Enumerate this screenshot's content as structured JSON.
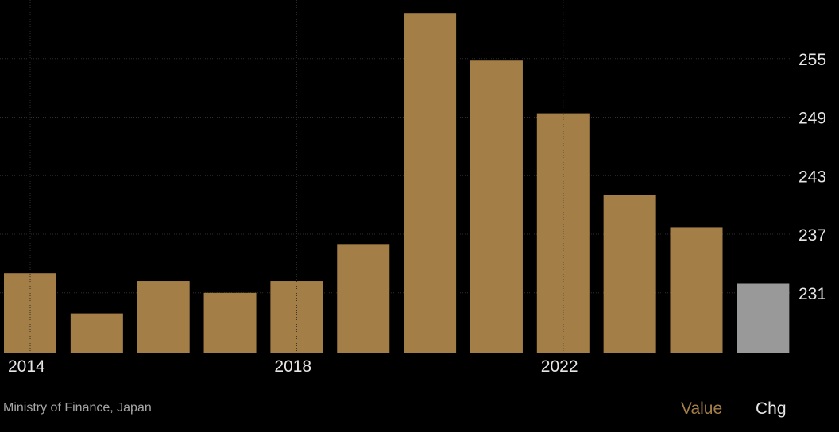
{
  "chart_data": {
    "type": "bar",
    "categories": [
      "2014",
      "2015",
      "2016",
      "2017",
      "2018",
      "2019",
      "2020",
      "2021",
      "2022",
      "2023",
      "2024",
      "2025"
    ],
    "values": [
      233.0,
      228.9,
      232.2,
      231.0,
      232.2,
      236.0,
      259.6,
      254.8,
      249.4,
      241.0,
      237.7,
      232.0
    ],
    "highlight_last": true,
    "x_tick_labels": [
      "2014",
      "2018",
      "2022"
    ],
    "y_ticks": [
      "255",
      "249",
      "243",
      "237",
      "231"
    ],
    "ylim": [
      224.8,
      261.0
    ],
    "grid": true,
    "y_axis_position": "right",
    "bar_color": "#a47e47",
    "last_bar_color": "#999999"
  },
  "source": "Ministry of Finance, Japan",
  "legend": {
    "value_label": "Value",
    "chg_label": "Chg"
  }
}
